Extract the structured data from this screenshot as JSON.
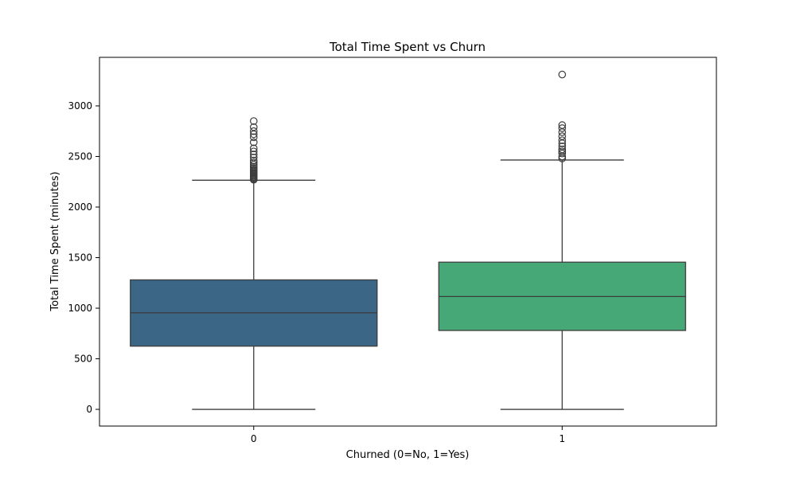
{
  "chart_data": {
    "type": "box",
    "title": "Total Time Spent vs Churn",
    "xlabel": "Churned (0=No, 1=Yes)",
    "ylabel": "Total Time Spent (minutes)",
    "categories": [
      "0",
      "1"
    ],
    "ylim": [
      -165,
      3480
    ],
    "yticks": [
      0,
      500,
      1000,
      1500,
      2000,
      2500,
      3000
    ],
    "grid": false,
    "legend": "none",
    "boxes": [
      {
        "category": "0",
        "color": "#3b6686",
        "whisker_low": 0,
        "q1": 625,
        "median": 955,
        "q3": 1280,
        "whisker_high": 2265,
        "outliers": [
          2270,
          2280,
          2290,
          2300,
          2310,
          2320,
          2330,
          2340,
          2350,
          2360,
          2370,
          2385,
          2400,
          2420,
          2440,
          2460,
          2490,
          2520,
          2550,
          2580,
          2640,
          2690,
          2720,
          2750,
          2790,
          2850
        ]
      },
      {
        "category": "1",
        "color": "#46a877",
        "whisker_low": 0,
        "q1": 780,
        "median": 1115,
        "q3": 1455,
        "whisker_high": 2465,
        "outliers": [
          2480,
          2500,
          2530,
          2550,
          2570,
          2600,
          2630,
          2660,
          2700,
          2740,
          2780,
          2810,
          3310
        ]
      }
    ]
  }
}
